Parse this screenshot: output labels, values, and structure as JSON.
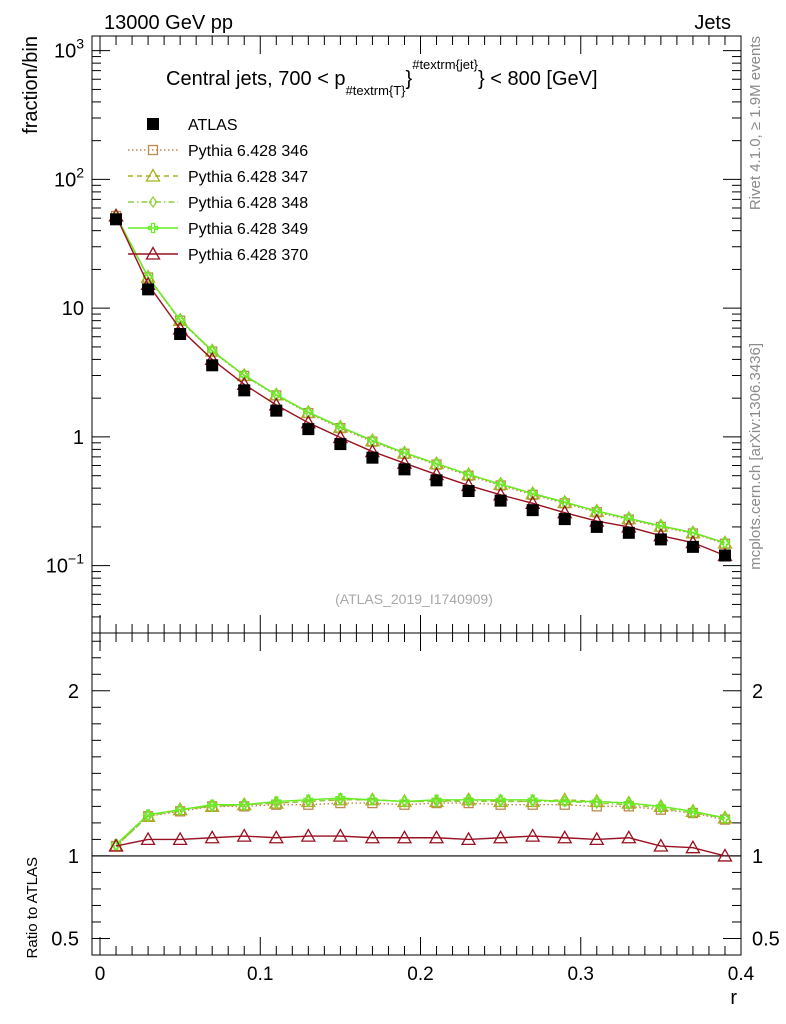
{
  "header": {
    "left": "13000 GeV pp",
    "right": "Jets"
  },
  "side_labels": {
    "rivet": "Rivet 4.1.0, ≥ 1.9M events",
    "mcplots": "mcplots.cern.ch [arXiv:1306.3436]"
  },
  "chart_data": [
    {
      "id": "main",
      "type": "line",
      "title_parts": [
        "Central jets, 700 < p",
        "#textrm{T}",
        "#textrm{jet}",
        " < 800 [GeV]"
      ],
      "ylabel": "fraction/bin",
      "yscale": "log",
      "ylim": [
        0.03,
        1300
      ],
      "xlim": [
        -0.005,
        0.4
      ],
      "y_ticks": [
        {
          "value": 1000,
          "base": "10",
          "exp": "3"
        },
        {
          "value": 100,
          "base": "10",
          "exp": "2"
        },
        {
          "value": 10,
          "base": "10",
          "exp": ""
        },
        {
          "value": 1,
          "base": "1",
          "exp": ""
        },
        {
          "value": 0.1,
          "base": "10",
          "exp": "−1"
        }
      ],
      "watermark": "(ATLAS_2019_I1740909)",
      "x": [
        0.01,
        0.03,
        0.05,
        0.07,
        0.09,
        0.11,
        0.13,
        0.15,
        0.17,
        0.19,
        0.21,
        0.23,
        0.25,
        0.27,
        0.29,
        0.31,
        0.33,
        0.35,
        0.37,
        0.39
      ],
      "series": [
        {
          "name": "ATLAS",
          "color": "#000000",
          "marker": "square",
          "line": "none",
          "values": [
            49,
            14,
            6.3,
            3.6,
            2.3,
            1.6,
            1.15,
            0.88,
            0.69,
            0.56,
            0.46,
            0.38,
            0.32,
            0.27,
            0.23,
            0.2,
            0.18,
            0.16,
            0.14,
            0.12
          ]
        },
        {
          "name": "Pythia 6.428 346",
          "color": "#c08850",
          "marker": "open-square",
          "line": "dotted",
          "values": [
            52,
            17.3,
            8.0,
            4.6,
            2.98,
            2.1,
            1.53,
            1.17,
            0.92,
            0.74,
            0.61,
            0.5,
            0.42,
            0.355,
            0.305,
            0.26,
            0.228,
            0.2,
            0.178,
            0.148
          ]
        },
        {
          "name": "Pythia 6.428 347",
          "color": "#a8b020",
          "marker": "open-triangle",
          "line": "dashed",
          "values": [
            52.2,
            17.4,
            8.05,
            4.65,
            3.0,
            2.12,
            1.55,
            1.19,
            0.935,
            0.75,
            0.62,
            0.51,
            0.428,
            0.362,
            0.31,
            0.265,
            0.232,
            0.203,
            0.18,
            0.15
          ]
        },
        {
          "name": "Pythia 6.428 348",
          "color": "#90d040",
          "marker": "open-diamond",
          "line": "dashdot",
          "values": [
            52.1,
            17.4,
            8.04,
            4.64,
            3.0,
            2.12,
            1.55,
            1.19,
            0.935,
            0.75,
            0.62,
            0.51,
            0.428,
            0.362,
            0.31,
            0.265,
            0.232,
            0.203,
            0.18,
            0.15
          ]
        },
        {
          "name": "Pythia 6.428 349",
          "color": "#66ee22",
          "marker": "open-cross",
          "line": "solid",
          "values": [
            52.3,
            17.5,
            8.1,
            4.68,
            3.02,
            2.13,
            1.56,
            1.2,
            0.94,
            0.755,
            0.622,
            0.512,
            0.43,
            0.364,
            0.312,
            0.266,
            0.233,
            0.204,
            0.181,
            0.151
          ]
        },
        {
          "name": "Pythia 6.428 370",
          "color": "#9a1020",
          "marker": "open-triangle",
          "line": "solid",
          "values": [
            52,
            15.3,
            6.9,
            4.0,
            2.56,
            1.77,
            1.29,
            0.99,
            0.77,
            0.625,
            0.51,
            0.42,
            0.355,
            0.305,
            0.258,
            0.222,
            0.2,
            0.171,
            0.151,
            0.12
          ]
        }
      ]
    },
    {
      "id": "ratio",
      "type": "line",
      "ylabel": "Ratio to ATLAS",
      "xlabel": "r",
      "ylim": [
        0.4,
        2.35
      ],
      "xlim": [
        -0.005,
        0.4
      ],
      "y_ticks": [
        0.5,
        1,
        2
      ],
      "y_tick_labels": [
        "0.5",
        "1",
        "2"
      ],
      "x_ticks": [
        0,
        0.1,
        0.2,
        0.3,
        0.4
      ],
      "x_tick_labels": [
        "0",
        "0.1",
        "0.2",
        "0.3",
        "0.4"
      ],
      "x": [
        0.01,
        0.03,
        0.05,
        0.07,
        0.09,
        0.11,
        0.13,
        0.15,
        0.17,
        0.19,
        0.21,
        0.23,
        0.25,
        0.27,
        0.29,
        0.31,
        0.33,
        0.35,
        0.37,
        0.39
      ],
      "series": [
        {
          "name": "Pythia 6.428 346",
          "color": "#c08850",
          "marker": "open-square",
          "line": "dotted",
          "values": [
            1.06,
            1.24,
            1.27,
            1.3,
            1.3,
            1.31,
            1.31,
            1.32,
            1.32,
            1.31,
            1.32,
            1.32,
            1.31,
            1.31,
            1.31,
            1.3,
            1.3,
            1.28,
            1.26,
            1.22
          ]
        },
        {
          "name": "Pythia 6.428 347",
          "color": "#a8b020",
          "marker": "open-triangle",
          "line": "dashed",
          "values": [
            1.06,
            1.24,
            1.28,
            1.3,
            1.31,
            1.32,
            1.33,
            1.34,
            1.34,
            1.33,
            1.33,
            1.34,
            1.33,
            1.33,
            1.34,
            1.33,
            1.32,
            1.3,
            1.27,
            1.23
          ]
        },
        {
          "name": "Pythia 6.428 348",
          "color": "#90d040",
          "marker": "open-diamond",
          "line": "dashdot",
          "values": [
            1.06,
            1.24,
            1.28,
            1.3,
            1.31,
            1.32,
            1.33,
            1.34,
            1.34,
            1.33,
            1.33,
            1.33,
            1.33,
            1.33,
            1.33,
            1.32,
            1.31,
            1.29,
            1.26,
            1.23
          ]
        },
        {
          "name": "Pythia 6.428 349",
          "color": "#66ee22",
          "marker": "open-cross",
          "line": "solid",
          "values": [
            1.07,
            1.25,
            1.28,
            1.31,
            1.31,
            1.33,
            1.34,
            1.35,
            1.34,
            1.33,
            1.34,
            1.34,
            1.34,
            1.34,
            1.33,
            1.33,
            1.32,
            1.3,
            1.27,
            1.23
          ]
        },
        {
          "name": "Pythia 6.428 370",
          "color": "#9a1020",
          "marker": "open-triangle",
          "line": "solid",
          "values": [
            1.06,
            1.1,
            1.1,
            1.11,
            1.12,
            1.11,
            1.12,
            1.12,
            1.11,
            1.11,
            1.11,
            1.1,
            1.11,
            1.12,
            1.11,
            1.1,
            1.11,
            1.06,
            1.05,
            1.0
          ]
        }
      ]
    }
  ]
}
